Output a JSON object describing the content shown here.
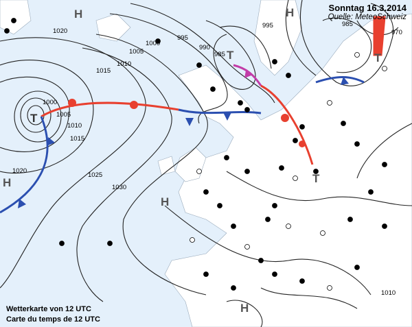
{
  "header": {
    "title": "Sonntag 16.3.2014",
    "source": "Quelle: MeteoSchweiz"
  },
  "captions": [
    "Wetterkarte von 12 UTC",
    "Carte du temps de 12 UTC"
  ],
  "pressure_centers": [
    "H",
    "H",
    "T",
    "T",
    "T",
    "H",
    "H",
    "H",
    "T"
  ],
  "isobar_labels": [
    "1020",
    "1000",
    "1005",
    "1010",
    "1015",
    "1020",
    "1025",
    "1030",
    "1015",
    "1010",
    "1005",
    "1000",
    "995",
    "990",
    "985",
    "995",
    "985",
    "970",
    "1010"
  ],
  "colors": {
    "sea": "#e4f0fb",
    "land": "#ffffff",
    "isobar": "#222222",
    "cold_front": "#2b4fb0",
    "warm_front": "#e8402f",
    "occlusion": "#c23ca8",
    "station_text": "#000000",
    "temperature_text": "#e02020"
  }
}
